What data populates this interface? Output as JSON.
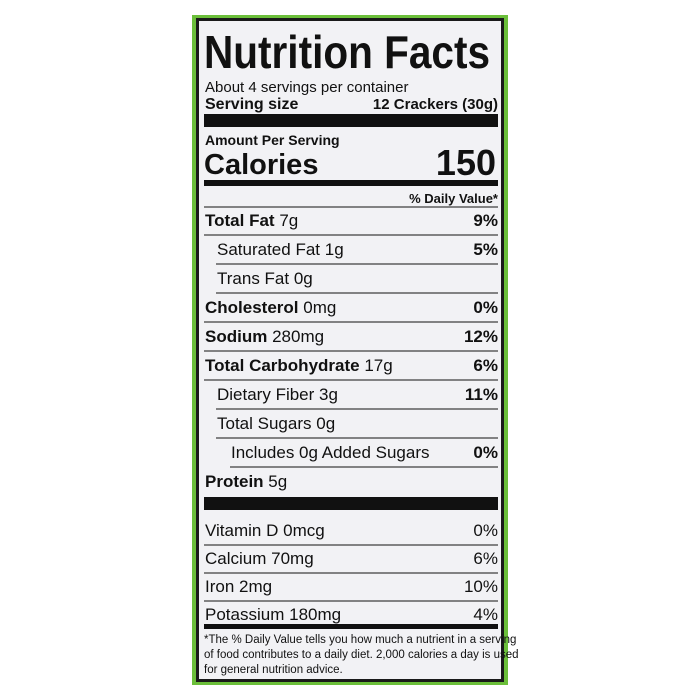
{
  "header": {
    "title": "Nutrition Facts",
    "servings": "About 4 servings per container",
    "serving_size_label": "Serving size",
    "serving_size": "12 Crackers (30g)"
  },
  "calories": {
    "heading": "Amount Per Serving",
    "label": "Calories",
    "value": "150"
  },
  "dv_heading": "% Daily Value*",
  "nutrients": [
    {
      "name": "Total Fat",
      "amount": "7g",
      "dv": "9%"
    },
    {
      "name": "Saturated Fat",
      "amount": "1g",
      "dv": "5%"
    },
    {
      "name": "Trans Fat",
      "amount": "0g"
    },
    {
      "name": "Cholesterol",
      "amount": "0mg",
      "dv": "0%"
    },
    {
      "name": "Sodium",
      "amount": "280mg",
      "dv": "12%"
    },
    {
      "name": "Total Carbohydrate",
      "amount": "17g",
      "dv": "6%"
    },
    {
      "name": "Dietary Fiber",
      "amount": "3g",
      "dv": "11%"
    },
    {
      "name": "Total Sugars",
      "amount": "0g"
    },
    {
      "name": "Includes 0g Added Sugars",
      "dv": "0%"
    },
    {
      "name": "Protein",
      "amount": "5g"
    }
  ],
  "vitamins": [
    {
      "name": "Vitamin D",
      "amount": "0mcg",
      "dv": "0%"
    },
    {
      "name": "Calcium",
      "amount": "70mg",
      "dv": "6%"
    },
    {
      "name": "Iron",
      "amount": "2mg",
      "dv": "10%"
    },
    {
      "name": "Potassium",
      "amount": "180mg",
      "dv": "4%"
    }
  ],
  "footnote": [
    "*The % Daily Value tells you how much a nutrient in a serving",
    "of food contributes to a daily diet. 2,000 calories a day is used",
    "for general nutrition advice."
  ]
}
